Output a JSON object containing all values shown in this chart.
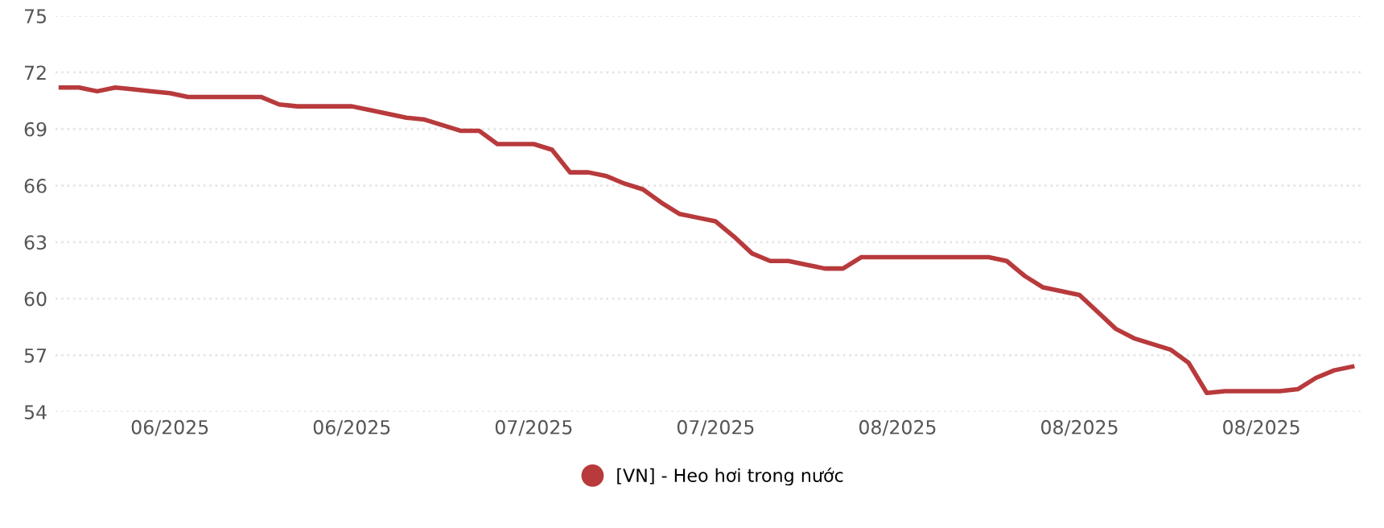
{
  "chart_data": {
    "type": "line",
    "categories": [
      null,
      null,
      null,
      null,
      null,
      null,
      "06/2025",
      null,
      null,
      null,
      null,
      null,
      null,
      null,
      null,
      null,
      "06/2025",
      null,
      null,
      null,
      null,
      null,
      null,
      null,
      null,
      null,
      "07/2025",
      null,
      null,
      null,
      null,
      null,
      null,
      null,
      null,
      null,
      "07/2025",
      null,
      null,
      null,
      null,
      null,
      null,
      null,
      null,
      null,
      "08/2025",
      null,
      null,
      null,
      null,
      null,
      null,
      null,
      null,
      null,
      "08/2025",
      null,
      null,
      null,
      null,
      null,
      null,
      null,
      null,
      null,
      "08/2025",
      null,
      null,
      null,
      null,
      null
    ],
    "series": [
      {
        "name": "[VN] - Heo hơi trong nước",
        "color": "#b83a3c",
        "values": [
          71.2,
          71.2,
          71.0,
          71.2,
          71.1,
          71.0,
          70.9,
          70.7,
          70.7,
          70.7,
          70.7,
          70.7,
          70.3,
          70.2,
          70.2,
          70.2,
          70.2,
          70.0,
          69.8,
          69.6,
          69.5,
          69.2,
          68.9,
          68.9,
          68.2,
          68.2,
          68.2,
          67.9,
          66.7,
          66.7,
          66.5,
          66.1,
          65.8,
          65.1,
          64.5,
          64.3,
          64.1,
          63.3,
          62.4,
          62.0,
          62.0,
          61.8,
          61.6,
          61.6,
          62.2,
          62.2,
          62.2,
          62.2,
          62.2,
          62.2,
          62.2,
          62.2,
          62.0,
          61.2,
          60.6,
          60.4,
          60.2,
          59.3,
          58.4,
          57.9,
          57.6,
          57.3,
          56.6,
          55.0,
          55.1,
          55.1,
          55.1,
          55.1,
          55.2,
          55.8,
          56.2,
          56.4
        ]
      }
    ],
    "ylim": [
      54,
      75
    ],
    "yticks": [
      54,
      57,
      60,
      63,
      66,
      69,
      72,
      75
    ],
    "grid": "y",
    "legend": "bottom",
    "marker": "none",
    "line_style": "solid"
  }
}
